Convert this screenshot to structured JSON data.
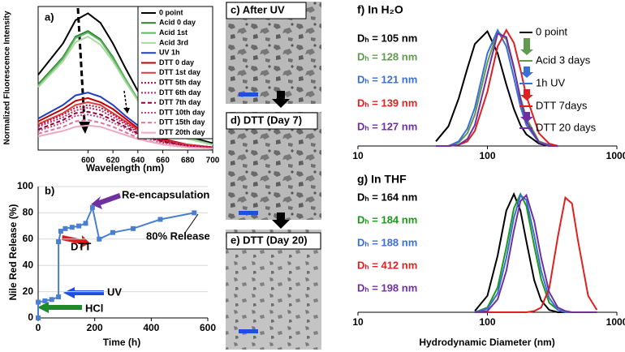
{
  "chart_data": [
    {
      "type": "line",
      "panel_label": "a)",
      "xlabel": "Wavelength (nm)",
      "ylabel": "Normalized Fluorescence Intensity",
      "xlim": [
        560,
        700
      ],
      "xticks": [
        600,
        620,
        640,
        660,
        680,
        700
      ],
      "ylim": [
        0,
        1.05
      ],
      "frame": "box",
      "legend": true,
      "x": [
        560,
        580,
        590,
        600,
        610,
        620,
        630,
        640,
        660,
        680,
        700
      ],
      "series": [
        {
          "name": "0 point",
          "color": "#000000",
          "values": [
            0.55,
            0.78,
            0.95,
            1.0,
            0.93,
            0.78,
            0.6,
            0.43,
            0.2,
            0.1,
            0.05
          ]
        },
        {
          "name": "Acid 0 day",
          "color": "#2e7d32",
          "values": [
            0.48,
            0.68,
            0.83,
            0.87,
            0.81,
            0.68,
            0.52,
            0.37,
            0.17,
            0.09,
            0.04
          ]
        },
        {
          "name": "Acid 1st",
          "color": "#5cb85c",
          "values": [
            0.47,
            0.67,
            0.82,
            0.86,
            0.8,
            0.67,
            0.52,
            0.37,
            0.17,
            0.09,
            0.04
          ]
        },
        {
          "name": "Acid 3rd",
          "color": "#a9d8a0",
          "values": [
            0.46,
            0.65,
            0.79,
            0.83,
            0.77,
            0.65,
            0.5,
            0.36,
            0.17,
            0.08,
            0.04
          ]
        },
        {
          "name": "UV 1h",
          "color": "#1f3fbf",
          "values": [
            0.23,
            0.33,
            0.4,
            0.42,
            0.39,
            0.33,
            0.25,
            0.18,
            0.08,
            0.04,
            0.02
          ]
        },
        {
          "name": "DTT 0 day",
          "color": "#c00000",
          "values": [
            0.21,
            0.3,
            0.36,
            0.38,
            0.35,
            0.3,
            0.23,
            0.16,
            0.08,
            0.04,
            0.02
          ]
        },
        {
          "name": "DTT 1st day",
          "color": "#e03a3a",
          "values": [
            0.19,
            0.27,
            0.33,
            0.35,
            0.33,
            0.27,
            0.21,
            0.15,
            0.07,
            0.04,
            0.02
          ]
        },
        {
          "name": "DTT 5th day",
          "color": "#b0103a",
          "dash": "dotted",
          "values": [
            0.18,
            0.26,
            0.31,
            0.33,
            0.31,
            0.26,
            0.2,
            0.14,
            0.07,
            0.03,
            0.02
          ]
        },
        {
          "name": "DTT 6th day",
          "color": "#c02060",
          "dash": "dotted",
          "values": [
            0.17,
            0.24,
            0.29,
            0.31,
            0.29,
            0.24,
            0.19,
            0.13,
            0.06,
            0.03,
            0.02
          ]
        },
        {
          "name": "DTT 7th day",
          "color": "#900030",
          "dash": "dashed",
          "values": [
            0.15,
            0.22,
            0.27,
            0.28,
            0.26,
            0.22,
            0.17,
            0.12,
            0.06,
            0.03,
            0.01
          ]
        },
        {
          "name": "DTT 10th day",
          "color": "#d04080",
          "dash": "dotted",
          "values": [
            0.14,
            0.2,
            0.25,
            0.26,
            0.24,
            0.2,
            0.16,
            0.11,
            0.05,
            0.03,
            0.01
          ]
        },
        {
          "name": "DTT 15th day",
          "color": "#e070a0",
          "dash": "dashed",
          "values": [
            0.12,
            0.17,
            0.21,
            0.22,
            0.2,
            0.17,
            0.13,
            0.09,
            0.04,
            0.02,
            0.01
          ]
        },
        {
          "name": "DTT 20th day",
          "color": "#f0a8c0",
          "values": [
            0.1,
            0.14,
            0.17,
            0.18,
            0.17,
            0.14,
            0.11,
            0.08,
            0.04,
            0.02,
            0.01
          ]
        }
      ]
    },
    {
      "type": "line",
      "panel_label": "b)",
      "xlabel": "Time (h)",
      "ylabel": "Nile Red Release (%)",
      "xlim": [
        0,
        600
      ],
      "xticks": [
        0,
        200,
        400,
        600
      ],
      "ylim": [
        0,
        100
      ],
      "yticks": [
        0,
        20,
        40,
        60,
        80,
        100
      ],
      "grid": true,
      "frame": "axes",
      "markers": true,
      "legend": false,
      "x": [
        0,
        0,
        24,
        48,
        72,
        72,
        80,
        96,
        120,
        144,
        168,
        192,
        216,
        264,
        336,
        432,
        552
      ],
      "series": [
        {
          "color": "#4a7fd0",
          "values": [
            0,
            12,
            13,
            14,
            16,
            58,
            66,
            68,
            69,
            70,
            72,
            84,
            60,
            65,
            68,
            75,
            80
          ]
        }
      ],
      "annotations": [
        "Re-encapsulation",
        "DTT",
        "80% Release",
        "UV",
        "HCl"
      ]
    },
    {
      "type": "line",
      "title": "f) In H₂O",
      "xlim": [
        10,
        1000
      ],
      "xlog": true,
      "xticks": [
        10,
        100,
        1000
      ],
      "ylim": [
        0,
        1.05
      ],
      "frame": "bottom",
      "legend": true,
      "x": [
        40,
        50,
        60,
        70,
        80,
        100,
        120,
        140,
        160,
        180,
        200,
        250,
        300,
        350
      ],
      "series": [
        {
          "name": "0 point",
          "color": "#000000",
          "values": [
            0.04,
            0.17,
            0.41,
            0.67,
            0.88,
            0.99,
            0.8,
            0.53,
            0.32,
            0.18,
            0.1,
            0.02,
            0,
            0
          ]
        },
        {
          "name": "Acid 3 days",
          "color": "#5f9a4e",
          "values": [
            0,
            0,
            0.03,
            0.11,
            0.27,
            0.72,
            0.99,
            0.92,
            0.67,
            0.42,
            0.24,
            0.04,
            0.01,
            0
          ]
        },
        {
          "name": "1h UV",
          "color": "#3a6fd8",
          "values": [
            0,
            0,
            0.04,
            0.15,
            0.33,
            0.8,
            1.0,
            0.86,
            0.59,
            0.34,
            0.18,
            0.03,
            0.01,
            0
          ]
        },
        {
          "name": "DTT 7days",
          "color": "#e02020",
          "values": [
            0,
            0,
            0.01,
            0.04,
            0.13,
            0.47,
            0.86,
            1.0,
            0.89,
            0.66,
            0.43,
            0.11,
            0.02,
            0
          ]
        },
        {
          "name": "DTT 20 days",
          "color": "#7030a0",
          "values": [
            0,
            0,
            0.01,
            0.06,
            0.18,
            0.62,
            0.97,
            0.94,
            0.68,
            0.4,
            0.21,
            0.03,
            0,
            0
          ]
        }
      ],
      "size_labels": [
        "Dₕ = 105 nm",
        "Dₕ = 128 nm",
        "Dₕ = 121 nm",
        "Dₕ = 139 nm",
        "Dₕ = 127 nm"
      ]
    },
    {
      "type": "line",
      "title": "g) In THF",
      "xlabel": "Hydrodynamic Diameter (nm)",
      "xlim": [
        10,
        1000
      ],
      "xlog": true,
      "xticks": [
        10,
        100,
        1000
      ],
      "ylim": [
        0,
        1.05
      ],
      "frame": "bottom",
      "legend": false,
      "x": [
        80,
        100,
        120,
        140,
        160,
        180,
        200,
        230,
        260,
        300,
        350,
        400,
        450,
        500,
        600,
        700
      ],
      "series": [
        {
          "name": "0 point",
          "color": "#000000",
          "values": [
            0.01,
            0.14,
            0.48,
            0.86,
            1.0,
            0.86,
            0.6,
            0.27,
            0.1,
            0.02,
            0,
            0,
            0,
            0,
            0,
            0
          ]
        },
        {
          "name": "Acid 3 days",
          "color": "#1a9a1a",
          "values": [
            0,
            0.04,
            0.21,
            0.55,
            0.88,
            1.0,
            0.9,
            0.56,
            0.28,
            0.08,
            0.02,
            0,
            0,
            0,
            0,
            0
          ]
        },
        {
          "name": "1h UV",
          "color": "#3a6fd8",
          "values": [
            0,
            0.03,
            0.16,
            0.46,
            0.8,
            0.99,
            0.95,
            0.65,
            0.35,
            0.12,
            0.02,
            0,
            0,
            0,
            0,
            0
          ]
        },
        {
          "name": "DTT 7days",
          "color": "#e02020",
          "values": [
            0,
            0,
            0,
            0,
            0,
            0,
            0,
            0.01,
            0.04,
            0.2,
            0.64,
            0.97,
            0.92,
            0.61,
            0.14,
            0.02
          ]
        },
        {
          "name": "DTT 20 days",
          "color": "#7030a0",
          "values": [
            0,
            0.01,
            0.11,
            0.35,
            0.69,
            0.94,
            0.99,
            0.77,
            0.46,
            0.17,
            0.04,
            0.01,
            0,
            0,
            0,
            0
          ]
        }
      ],
      "size_labels": [
        "Dₕ = 164 nm",
        "Dₕ = 184 nm",
        "Dₕ = 188 nm",
        "Dₕ = 412 nm",
        "Dₕ = 198 nm"
      ]
    }
  ],
  "micrographs": {
    "labels": [
      "c) After UV",
      "d) DTT (Day 7)",
      "e) DTT (Day 20)"
    ]
  }
}
